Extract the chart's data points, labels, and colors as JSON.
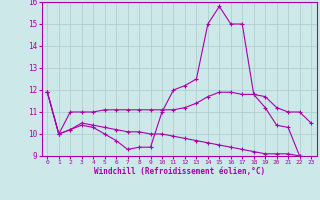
{
  "bg_color": "#cce8e8",
  "line_color": "#aa00aa",
  "grid_color": "#aacccc",
  "xlabel": "Windchill (Refroidissement éolien,°C)",
  "xlim": [
    -0.5,
    23.5
  ],
  "ylim": [
    9,
    16
  ],
  "yticks": [
    9,
    10,
    11,
    12,
    13,
    14,
    15,
    16
  ],
  "xticks": [
    0,
    1,
    2,
    3,
    4,
    5,
    6,
    7,
    8,
    9,
    10,
    11,
    12,
    13,
    14,
    15,
    16,
    17,
    18,
    19,
    20,
    21,
    22,
    23
  ],
  "series": [
    {
      "x": [
        0,
        1,
        2,
        3,
        4,
        5,
        6,
        7,
        8,
        9,
        10,
        11,
        12,
        13,
        14,
        15,
        16,
        17,
        18,
        19,
        20,
        21,
        22,
        23
      ],
      "y": [
        11.9,
        10.0,
        10.2,
        10.4,
        10.3,
        10.0,
        9.7,
        9.3,
        9.4,
        9.4,
        11.0,
        12.0,
        12.2,
        12.5,
        15.0,
        15.8,
        15.0,
        15.0,
        11.8,
        11.2,
        10.4,
        10.3,
        9.0,
        8.9
      ]
    },
    {
      "x": [
        0,
        1,
        2,
        3,
        4,
        5,
        6,
        7,
        8,
        9,
        10,
        11,
        12,
        13,
        14,
        15,
        16,
        17,
        18,
        19,
        20,
        21,
        22,
        23
      ],
      "y": [
        11.9,
        10.0,
        11.0,
        11.0,
        11.0,
        11.1,
        11.1,
        11.1,
        11.1,
        11.1,
        11.1,
        11.1,
        11.2,
        11.4,
        11.7,
        11.9,
        11.9,
        11.8,
        11.8,
        11.7,
        11.2,
        11.0,
        11.0,
        10.5
      ]
    },
    {
      "x": [
        0,
        1,
        2,
        3,
        4,
        5,
        6,
        7,
        8,
        9,
        10,
        11,
        12,
        13,
        14,
        15,
        16,
        17,
        18,
        19,
        20,
        21,
        22,
        23
      ],
      "y": [
        11.9,
        10.0,
        10.2,
        10.5,
        10.4,
        10.3,
        10.2,
        10.1,
        10.1,
        10.0,
        10.0,
        9.9,
        9.8,
        9.7,
        9.6,
        9.5,
        9.4,
        9.3,
        9.2,
        9.1,
        9.1,
        9.1,
        9.0,
        8.9
      ]
    }
  ]
}
